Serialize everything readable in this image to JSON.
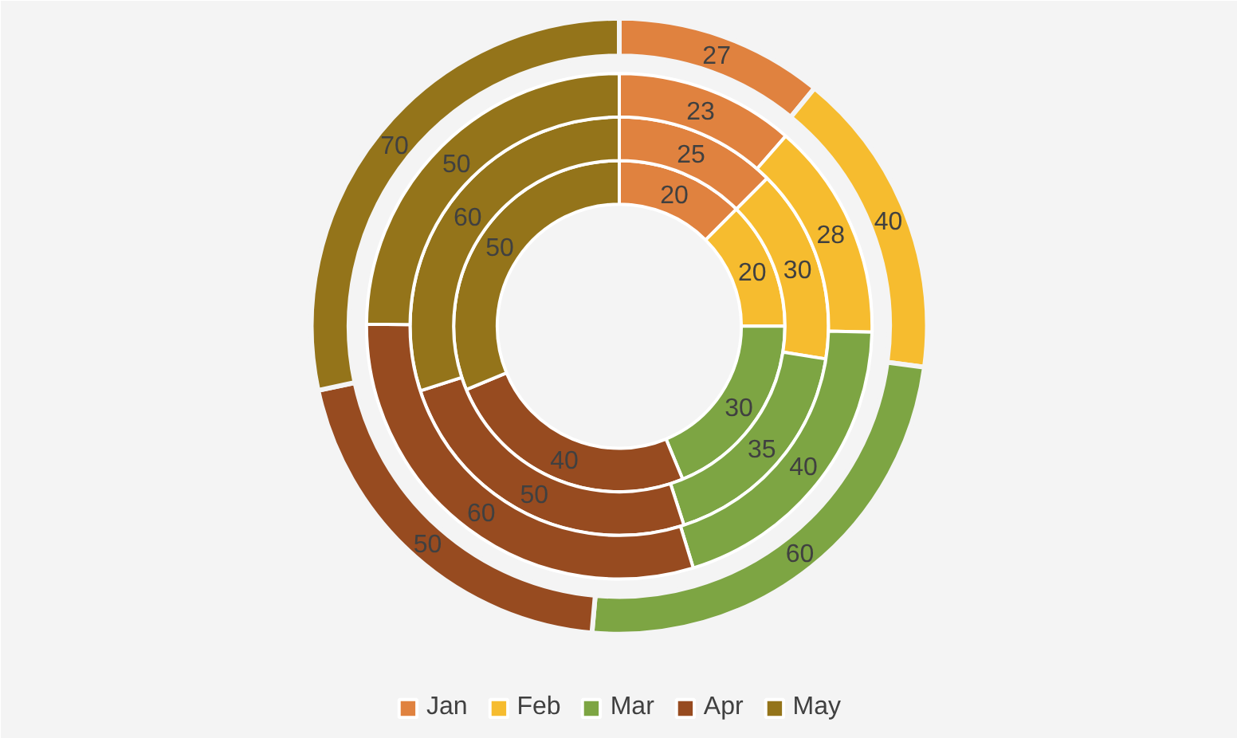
{
  "chart_data": {
    "type": "donut",
    "categories": [
      "Jan",
      "Feb",
      "Mar",
      "Apr",
      "May"
    ],
    "colors": [
      "#e0823f",
      "#f6bc2f",
      "#7da543",
      "#974b20",
      "#94741a"
    ],
    "series": [
      {
        "values": [
          20,
          20,
          30,
          40,
          50
        ]
      },
      {
        "values": [
          25,
          30,
          35,
          50,
          60
        ]
      },
      {
        "values": [
          23,
          28,
          40,
          60,
          50
        ]
      },
      {
        "values": [
          27,
          40,
          60,
          50,
          70
        ]
      }
    ],
    "data_labels": true,
    "legend": "bottom"
  }
}
